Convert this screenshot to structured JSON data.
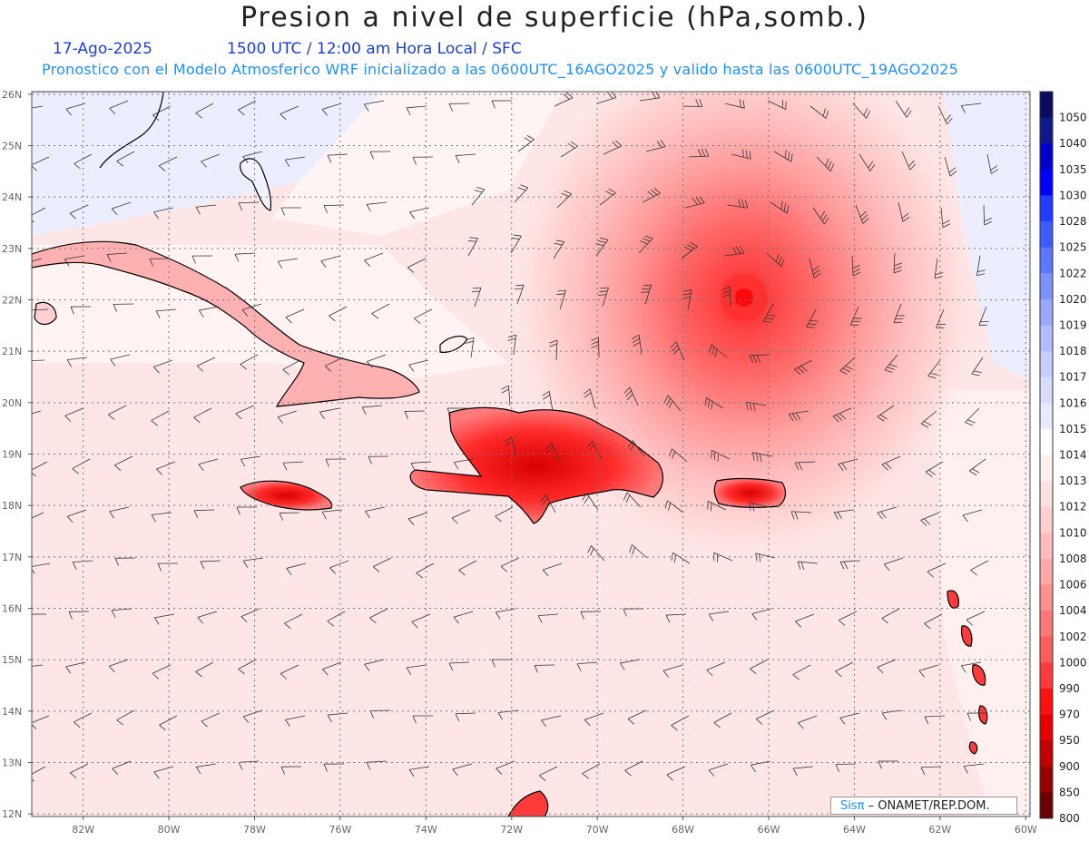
{
  "header": {
    "title": "Presion a nivel de superficie (hPa,somb.)",
    "date": "17-Ago-2025",
    "time_info": "1500 UTC / 12:00 am Hora Local / SFC",
    "forecast_info": "Pronostico con el Modelo Atmosferico WRF inicializado a las 0600UTC_16AGO2025 y valido hasta las  0600UTC_19AGO2025"
  },
  "map": {
    "lat_labels": [
      "26N",
      "25N",
      "24N",
      "23N",
      "22N",
      "21N",
      "20N",
      "19N",
      "18N",
      "17N",
      "16N",
      "15N",
      "14N",
      "13N",
      "12N"
    ],
    "lon_labels": [
      "82W",
      "80W",
      "78W",
      "76W",
      "74W",
      "72W",
      "70W",
      "68W",
      "66W",
      "64W",
      "62W",
      "60W"
    ],
    "low_center": {
      "lon": -66.5,
      "lat": 22.0
    }
  },
  "legend": {
    "levels": [
      "1050",
      "1040",
      "1035",
      "1030",
      "1028",
      "1025",
      "1022",
      "1020",
      "1019",
      "1018",
      "1017",
      "1016",
      "1015",
      "1014",
      "1013",
      "1012",
      "1010",
      "1008",
      "1006",
      "1004",
      "1002",
      "1000",
      "990",
      "970",
      "950",
      "900",
      "850",
      "800"
    ],
    "colors": [
      "#0a0a60",
      "#0f1a8a",
      "#0000cc",
      "#0000ff",
      "#1f3cff",
      "#3c5cff",
      "#5c78ff",
      "#7c92ff",
      "#9aa8ff",
      "#b2bcff",
      "#c6cdff",
      "#d8ddff",
      "#e8ebff",
      "#ffffff",
      "#fff0f0",
      "#ffe1e1",
      "#ffd0d0",
      "#ffbcbc",
      "#ffa8a8",
      "#ff9090",
      "#ff7777",
      "#ff5c5c",
      "#ff3a3a",
      "#ff1010",
      "#e80000",
      "#c40000",
      "#9a0000",
      "#6a0000"
    ]
  },
  "credit": {
    "brand": "Sisπ",
    "text": "– ONAMET/REP.DOM."
  }
}
